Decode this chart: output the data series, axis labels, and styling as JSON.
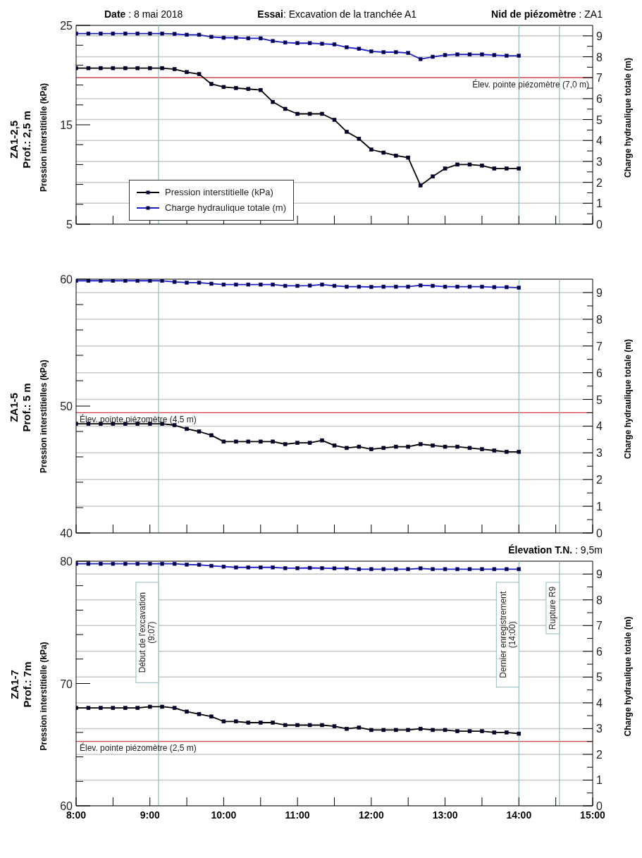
{
  "chart_data": [
    {
      "type": "line",
      "title": "ZA1-2,5",
      "subtitle": "Prof.: 2,5 m",
      "annotations": [
        "Date : 8 mai 2018",
        "Essai: Excavation de la tranchée A1",
        "Nid de piézomètre : ZA1"
      ],
      "ylabel": "Pression interstitielle (kPa)",
      "y2label": "Charge hydraulique totale (m)",
      "x": [
        8,
        8.1667,
        8.3333,
        8.5,
        8.6667,
        8.8333,
        9,
        9.1667,
        9.3333,
        9.5,
        9.6667,
        9.8333,
        10,
        10.1667,
        10.3333,
        10.5,
        10.6667,
        10.8333,
        11,
        11.1667,
        11.3333,
        11.5,
        11.6667,
        11.8333,
        12,
        12.1667,
        12.3333,
        12.5,
        12.6667,
        12.8333,
        13,
        13.1667,
        13.3333,
        13.5,
        13.6667,
        13.8333,
        14
      ],
      "series": [
        {
          "name": "Pression interstitielle (kPa)",
          "color": "#000000",
          "values": [
            20.7,
            20.7,
            20.7,
            20.7,
            20.7,
            20.7,
            20.7,
            20.7,
            20.6,
            20.3,
            20.1,
            19.1,
            18.8,
            18.7,
            18.6,
            18.5,
            17.3,
            16.6,
            16.1,
            16.1,
            16.1,
            15.5,
            14.3,
            13.6,
            12.5,
            12.2,
            11.9,
            11.7,
            8.9,
            9.8,
            10.6,
            11.0,
            11.0,
            10.9,
            10.6,
            10.6,
            10.6
          ]
        },
        {
          "name": "Charge hydraulique totale (m)",
          "color": "#1f1fc8",
          "axis": "y2",
          "values": [
            9.11,
            9.11,
            9.11,
            9.11,
            9.11,
            9.11,
            9.11,
            9.11,
            9.09,
            9.05,
            9.05,
            8.95,
            8.91,
            8.91,
            8.88,
            8.88,
            8.75,
            8.68,
            8.65,
            8.65,
            8.62,
            8.59,
            8.45,
            8.38,
            8.26,
            8.22,
            8.22,
            8.18,
            7.89,
            8.0,
            8.08,
            8.11,
            8.11,
            8.11,
            8.08,
            8.05,
            8.05
          ]
        }
      ],
      "xlim": [
        8,
        15
      ],
      "xticks": [
        {
          "value": 8,
          "label": null
        },
        {
          "value": 8.5,
          "label": null
        },
        {
          "value": 9,
          "label": null
        },
        {
          "value": 9.5,
          "label": null
        },
        {
          "value": 10,
          "label": null
        },
        {
          "value": 10.5,
          "label": null
        },
        {
          "value": 11,
          "label": null
        },
        {
          "value": 11.5,
          "label": null
        },
        {
          "value": 12,
          "label": null
        },
        {
          "value": 12.5,
          "label": null
        },
        {
          "value": 13,
          "label": null
        },
        {
          "value": 13.5,
          "label": null
        },
        {
          "value": 14,
          "label": null
        },
        {
          "value": 14.5,
          "label": null
        },
        {
          "value": 15,
          "label": null
        }
      ],
      "ylim": [
        5,
        25
      ],
      "yticks": [
        5,
        {
          "value": 7,
          "label": null
        },
        {
          "value": 9,
          "label": null
        },
        {
          "value": 11,
          "label": null
        },
        {
          "value": 13,
          "label": null
        },
        15,
        {
          "value": 17,
          "label": null
        },
        {
          "value": 19,
          "label": null
        },
        {
          "value": 21,
          "label": null
        },
        {
          "value": 23,
          "label": null
        },
        25
      ],
      "y2lim": [
        0,
        9.5
      ],
      "y2ticks": [
        0,
        {
          "value": 0.5,
          "label": null
        },
        1,
        {
          "value": 1.5,
          "label": null
        },
        2,
        {
          "value": 2.5,
          "label": null
        },
        3,
        {
          "value": 3.5,
          "label": null
        },
        4,
        {
          "value": 4.5,
          "label": null
        },
        5,
        {
          "value": 5.5,
          "label": null
        },
        6,
        {
          "value": 6.5,
          "label": null
        },
        7,
        {
          "value": 7.5,
          "label": null
        },
        8,
        {
          "value": 8.5,
          "label": null
        },
        9
      ],
      "ref_lines": [
        {
          "axis": "y2",
          "value": 7.0,
          "label": "Élev. pointe piézomètre (7,0 m)",
          "color": "#d04040"
        },
        {
          "axis": "x",
          "value": 9.1167,
          "label": null,
          "color": "#8fbcbc"
        },
        {
          "axis": "x",
          "value": 14,
          "label": null,
          "color": "#8fbcbc"
        },
        {
          "axis": "x",
          "value": 14.55,
          "label": null,
          "color": "#8fbcbc"
        }
      ],
      "grid": "y",
      "legend": "bottom left",
      "tick_labels": "y",
      "marker": "square",
      "line_style": "solid"
    },
    {
      "type": "line",
      "title": "ZA1-5",
      "subtitle": "Prof.: 5 m",
      "ylabel": "Pression interstitielles (kPa)",
      "y2label": "Charge hydraulique totale (m)",
      "x": [
        8,
        8.1667,
        8.3333,
        8.5,
        8.6667,
        8.8333,
        9,
        9.1667,
        9.3333,
        9.5,
        9.6667,
        9.8333,
        10,
        10.1667,
        10.3333,
        10.5,
        10.6667,
        10.8333,
        11,
        11.1667,
        11.3333,
        11.5,
        11.6667,
        11.8333,
        12,
        12.1667,
        12.3333,
        12.5,
        12.6667,
        12.8333,
        13,
        13.1667,
        13.3333,
        13.5,
        13.6667,
        13.8333,
        14
      ],
      "series": [
        {
          "color": "#000000",
          "values": [
            48.6,
            48.6,
            48.6,
            48.6,
            48.6,
            48.6,
            48.6,
            48.6,
            48.5,
            48.2,
            48.0,
            47.7,
            47.2,
            47.2,
            47.2,
            47.2,
            47.2,
            47.0,
            47.1,
            47.1,
            47.3,
            46.9,
            46.7,
            46.8,
            46.6,
            46.7,
            46.8,
            46.8,
            47.0,
            46.9,
            46.8,
            46.8,
            46.7,
            46.6,
            46.5,
            46.4,
            46.4
          ]
        },
        {
          "color": "#1f1fc8",
          "axis": "y2",
          "values": [
            9.44,
            9.44,
            9.44,
            9.44,
            9.44,
            9.44,
            9.44,
            9.44,
            9.4,
            9.37,
            9.37,
            9.33,
            9.3,
            9.3,
            9.3,
            9.3,
            9.3,
            9.25,
            9.25,
            9.26,
            9.3,
            9.25,
            9.22,
            9.22,
            9.21,
            9.22,
            9.22,
            9.22,
            9.27,
            9.25,
            9.22,
            9.22,
            9.22,
            9.22,
            9.2,
            9.2,
            9.18
          ]
        }
      ],
      "xlim": [
        8,
        15
      ],
      "xticks": [
        {
          "value": 8,
          "label": null
        },
        {
          "value": 8.5,
          "label": null
        },
        {
          "value": 9,
          "label": null
        },
        {
          "value": 9.5,
          "label": null
        },
        {
          "value": 10,
          "label": null
        },
        {
          "value": 10.5,
          "label": null
        },
        {
          "value": 11,
          "label": null
        },
        {
          "value": 11.5,
          "label": null
        },
        {
          "value": 12,
          "label": null
        },
        {
          "value": 12.5,
          "label": null
        },
        {
          "value": 13,
          "label": null
        },
        {
          "value": 13.5,
          "label": null
        },
        {
          "value": 14,
          "label": null
        },
        {
          "value": 14.5,
          "label": null
        },
        {
          "value": 15,
          "label": null
        }
      ],
      "ylim": [
        40,
        60
      ],
      "yticks": [
        40,
        {
          "value": 42,
          "label": null
        },
        {
          "value": 44,
          "label": null
        },
        {
          "value": 46,
          "label": null
        },
        {
          "value": 48,
          "label": null
        },
        50,
        {
          "value": 52,
          "label": null
        },
        {
          "value": 54,
          "label": null
        },
        {
          "value": 56,
          "label": null
        },
        {
          "value": 58,
          "label": null
        },
        60
      ],
      "y2lim": [
        0,
        9.5
      ],
      "y2ticks": [
        0,
        {
          "value": 0.5,
          "label": null
        },
        1,
        {
          "value": 1.5,
          "label": null
        },
        2,
        {
          "value": 2.5,
          "label": null
        },
        3,
        {
          "value": 3.5,
          "label": null
        },
        4,
        {
          "value": 4.5,
          "label": null
        },
        5,
        {
          "value": 5.5,
          "label": null
        },
        6,
        {
          "value": 6.5,
          "label": null
        },
        7,
        {
          "value": 7.5,
          "label": null
        },
        8,
        {
          "value": 8.5,
          "label": null
        },
        9
      ],
      "ref_lines": [
        {
          "axis": "y2",
          "value": 4.5,
          "label": "Élev. pointe piézomètre (4,5 m)",
          "color": "#d04040"
        },
        {
          "axis": "x",
          "value": 9.1167,
          "label": null,
          "color": "#8fbcbc"
        },
        {
          "axis": "x",
          "value": 14,
          "label": null,
          "color": "#8fbcbc"
        },
        {
          "axis": "x",
          "value": 14.55,
          "label": null,
          "color": "#8fbcbc"
        }
      ],
      "grid": "y",
      "tick_labels": "y",
      "marker": "square",
      "line_style": "solid"
    },
    {
      "type": "line",
      "title": "ZA1-7",
      "subtitle": "Prof.: 7m",
      "annotations": [
        "Élevation T.N. : 9,5m"
      ],
      "ylabel": "Pression interstitielle (kPa)",
      "y2label": "Charge hydraulique totale (m)",
      "x": [
        8,
        8.1667,
        8.3333,
        8.5,
        8.6667,
        8.8333,
        9,
        9.1667,
        9.3333,
        9.5,
        9.6667,
        9.8333,
        10,
        10.1667,
        10.3333,
        10.5,
        10.6667,
        10.8333,
        11,
        11.1667,
        11.3333,
        11.5,
        11.6667,
        11.8333,
        12,
        12.1667,
        12.3333,
        12.5,
        12.6667,
        12.8333,
        13,
        13.1667,
        13.3333,
        13.5,
        13.6667,
        13.8333,
        14
      ],
      "series": [
        {
          "color": "#000000",
          "values": [
            68.0,
            68.0,
            68.0,
            68.0,
            68.0,
            68.0,
            68.1,
            68.1,
            68.0,
            67.7,
            67.5,
            67.3,
            66.9,
            66.9,
            66.8,
            66.8,
            66.8,
            66.6,
            66.6,
            66.6,
            66.6,
            66.5,
            66.3,
            66.4,
            66.2,
            66.2,
            66.2,
            66.2,
            66.3,
            66.2,
            66.2,
            66.1,
            66.1,
            66.1,
            66.0,
            66.0,
            65.9
          ]
        },
        {
          "color": "#1f1fc8",
          "axis": "y2",
          "values": [
            9.4,
            9.4,
            9.4,
            9.4,
            9.4,
            9.4,
            9.4,
            9.4,
            9.4,
            9.37,
            9.36,
            9.32,
            9.29,
            9.26,
            9.26,
            9.26,
            9.26,
            9.23,
            9.23,
            9.24,
            9.23,
            9.22,
            9.22,
            9.19,
            9.19,
            9.19,
            9.19,
            9.19,
            9.22,
            9.19,
            9.19,
            9.19,
            9.19,
            9.19,
            9.19,
            9.19,
            9.19
          ]
        }
      ],
      "xlim": [
        8,
        15
      ],
      "xticks": [
        {
          "value": 8,
          "label": "8:00"
        },
        {
          "value": 8.5,
          "label": null
        },
        {
          "value": 9,
          "label": "9:00"
        },
        {
          "value": 9.5,
          "label": null
        },
        {
          "value": 10,
          "label": "10:00"
        },
        {
          "value": 10.5,
          "label": null
        },
        {
          "value": 11,
          "label": "11:00"
        },
        {
          "value": 11.5,
          "label": null
        },
        {
          "value": 12,
          "label": "12:00"
        },
        {
          "value": 12.5,
          "label": null
        },
        {
          "value": 13,
          "label": "13:00"
        },
        {
          "value": 13.5,
          "label": null
        },
        {
          "value": 14,
          "label": "14:00"
        },
        {
          "value": 14.5,
          "label": null
        },
        {
          "value": 15,
          "label": "15:00"
        }
      ],
      "ylim": [
        60,
        80
      ],
      "yticks": [
        60,
        {
          "value": 62,
          "label": null
        },
        {
          "value": 64,
          "label": null
        },
        {
          "value": 66,
          "label": null
        },
        {
          "value": 68,
          "label": null
        },
        70,
        {
          "value": 72,
          "label": null
        },
        {
          "value": 74,
          "label": null
        },
        {
          "value": 76,
          "label": null
        },
        {
          "value": 78,
          "label": null
        },
        80
      ],
      "y2lim": [
        0,
        9.5
      ],
      "y2ticks": [
        0,
        {
          "value": 0.5,
          "label": null
        },
        1,
        {
          "value": 1.5,
          "label": null
        },
        2,
        {
          "value": 2.5,
          "label": null
        },
        3,
        {
          "value": 3.5,
          "label": null
        },
        4,
        {
          "value": 4.5,
          "label": null
        },
        5,
        {
          "value": 5.5,
          "label": null
        },
        6,
        {
          "value": 6.5,
          "label": null
        },
        7,
        {
          "value": 7.5,
          "label": null
        },
        8,
        {
          "value": 8.5,
          "label": null
        },
        9
      ],
      "ref_lines": [
        {
          "axis": "y2",
          "value": 2.5,
          "label": "Élev. pointe piézomètre (2,5 m)",
          "color": "#d04040"
        },
        {
          "axis": "x",
          "value": 9.1167,
          "label": "Début de l'excavation (9:07)",
          "color": "#8fbcbc"
        },
        {
          "axis": "x",
          "value": 14,
          "label": "Dernier enregistrement (14:00)",
          "color": "#8fbcbc"
        },
        {
          "axis": "x",
          "value": 14.55,
          "label": "Rupture R9",
          "color": "#8fbcbc"
        }
      ],
      "grid": "y",
      "marker": "square",
      "line_style": "solid"
    }
  ]
}
